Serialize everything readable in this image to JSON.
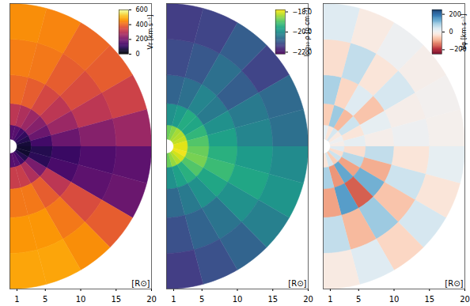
{
  "chart_data": [
    {
      "type": "heatmap",
      "color": "inferno",
      "xlabel": "[R⊙]",
      "xlim": [
        0,
        20
      ],
      "xticks": [
        1,
        5,
        10,
        15,
        20
      ],
      "ylim": [
        -20,
        20
      ],
      "tick_labels": "x",
      "colorbar_label": "Vr [km s⁻¹]",
      "colorbar_lim": [
        0,
        600
      ],
      "colorbar_ticks": [
        0,
        200,
        400,
        600
      ],
      "theta_edges": [
        90,
        75,
        60,
        45,
        30,
        15,
        0,
        -15,
        -30,
        -45,
        -60,
        -75,
        -90
      ],
      "r_edges": [
        1,
        3,
        6,
        10,
        15,
        20
      ],
      "values": [
        [
          150,
          300,
          400,
          430,
          450
        ],
        [
          150,
          280,
          380,
          420,
          440
        ],
        [
          120,
          250,
          340,
          380,
          400
        ],
        [
          100,
          220,
          300,
          350,
          380
        ],
        [
          80,
          180,
          250,
          300,
          330
        ],
        [
          60,
          120,
          180,
          220,
          250
        ],
        [
          50,
          80,
          110,
          140,
          160
        ],
        [
          50,
          90,
          130,
          160,
          180
        ],
        [
          80,
          200,
          300,
          350,
          380
        ],
        [
          120,
          280,
          380,
          420,
          450
        ],
        [
          150,
          320,
          420,
          460,
          480
        ],
        [
          150,
          320,
          420,
          460,
          480
        ]
      ]
    },
    {
      "type": "heatmap",
      "color": "viridis",
      "xlabel": "[R⊙]",
      "xlim": [
        0,
        20
      ],
      "xticks": [
        1,
        5,
        10,
        15,
        20
      ],
      "ylim": [
        -20,
        20
      ],
      "tick_labels": "x",
      "colorbar_label": "log₁₀ ρ [g cm⁻³]",
      "colorbar_lim": [
        -22.2,
        -17.8
      ],
      "colorbar_ticks": [
        -22,
        -20,
        -18
      ],
      "theta_edges": [
        90,
        75,
        60,
        45,
        30,
        15,
        0,
        -15,
        -30,
        -45,
        -60,
        -75,
        -90
      ],
      "r_edges": [
        1,
        3,
        6,
        10,
        15,
        20
      ],
      "values": [
        [
          -18.8,
          -20.0,
          -20.8,
          -21.2,
          -21.4
        ],
        [
          -18.6,
          -19.8,
          -20.6,
          -21.0,
          -21.3
        ],
        [
          -18.4,
          -19.5,
          -20.2,
          -20.6,
          -20.9
        ],
        [
          -18.3,
          -19.6,
          -20.4,
          -20.9,
          -21.3
        ],
        [
          -18.2,
          -19.3,
          -20.0,
          -20.4,
          -20.7
        ],
        [
          -18.0,
          -19.0,
          -19.7,
          -20.2,
          -20.6
        ],
        [
          -18.0,
          -18.8,
          -19.4,
          -19.8,
          -20.1
        ],
        [
          -17.9,
          -18.7,
          -19.2,
          -19.6,
          -19.9
        ],
        [
          -18.1,
          -19.0,
          -19.6,
          -20.0,
          -20.3
        ],
        [
          -18.3,
          -19.4,
          -20.0,
          -20.5,
          -20.8
        ],
        [
          -18.5,
          -19.7,
          -20.4,
          -20.8,
          -21.1
        ],
        [
          -18.8,
          -20.0,
          -20.7,
          -21.1,
          -21.4
        ]
      ]
    },
    {
      "type": "heatmap",
      "color": "rdbu",
      "xlabel": "[R⊙]",
      "xlim": [
        0,
        20
      ],
      "xticks": [
        1,
        5,
        10,
        15,
        20
      ],
      "ylim": [
        -20,
        20
      ],
      "tick_labels": "x",
      "colorbar_label": "Vφ [km s⁻¹]",
      "colorbar_lim": [
        -250,
        250
      ],
      "colorbar_ticks": [
        -200,
        0,
        200
      ],
      "theta_edges": [
        90,
        75,
        60,
        45,
        30,
        15,
        0,
        -15,
        -30,
        -45,
        -60,
        -75,
        -90
      ],
      "r_edges": [
        1,
        3,
        6,
        10,
        15,
        20
      ],
      "values": [
        [
          20,
          -60,
          80,
          -40,
          30
        ],
        [
          -30,
          90,
          -50,
          60,
          -20
        ],
        [
          40,
          -80,
          30,
          -30,
          10
        ],
        [
          -20,
          50,
          -70,
          40,
          -10
        ],
        [
          10,
          -30,
          20,
          -10,
          0
        ],
        [
          -10,
          20,
          -10,
          10,
          -5
        ],
        [
          30,
          -40,
          60,
          -30,
          20
        ],
        [
          -40,
          70,
          -90,
          50,
          -30
        ],
        [
          50,
          -100,
          120,
          -70,
          40
        ],
        [
          -60,
          130,
          -150,
          90,
          -50
        ],
        [
          40,
          -110,
          140,
          -80,
          30
        ],
        [
          -30,
          80,
          -100,
          60,
          -20
        ]
      ]
    }
  ]
}
